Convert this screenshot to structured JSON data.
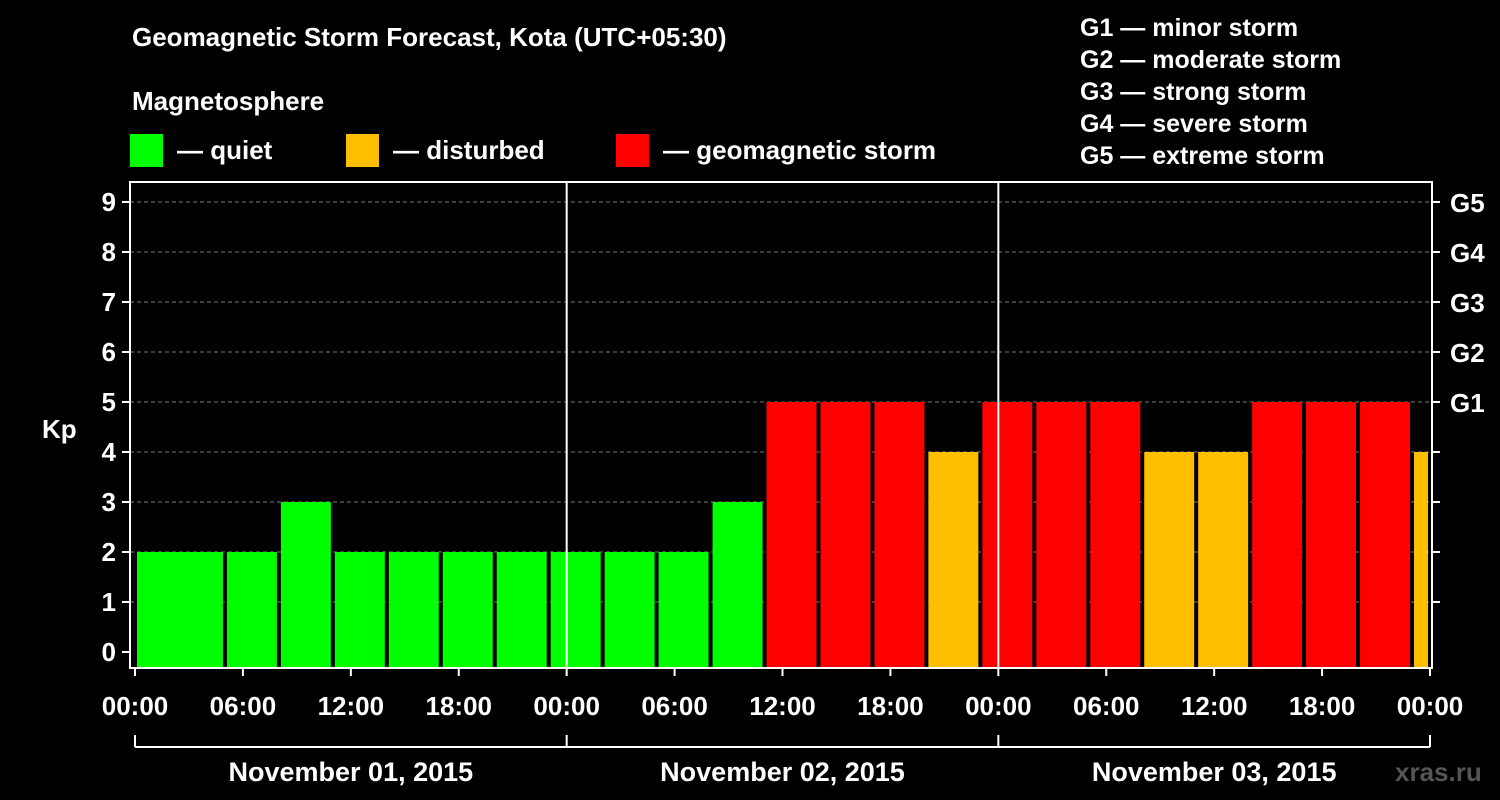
{
  "title": "Geomagnetic Storm Forecast, Kota (UTC+05:30)",
  "magnetosphere_label": "Magnetosphere",
  "legend": [
    {
      "label": "— quiet",
      "color": "#00ff00"
    },
    {
      "label": "— disturbed",
      "color": "#ffbf00"
    },
    {
      "label": "— geomagnetic storm",
      "color": "#ff0000"
    }
  ],
  "g_scale_legend": [
    "G1 — minor storm",
    "G2 — moderate storm",
    "G3 — strong storm",
    "G4 — severe storm",
    "G5 — extreme storm"
  ],
  "watermark": "xras.ru",
  "colors": {
    "quiet": "#00ff00",
    "disturbed": "#ffbf00",
    "storm": "#ff0000",
    "background": "#000000",
    "axis": "#ffffff"
  },
  "chart_data": {
    "type": "bar",
    "ylabel": "Kp",
    "ylim": [
      0,
      9
    ],
    "yticks": [
      "0",
      "1",
      "2",
      "3",
      "4",
      "5",
      "6",
      "7",
      "8",
      "9"
    ],
    "right_ticks": [
      {
        "kp": 5,
        "label": "G1"
      },
      {
        "kp": 6,
        "label": "G2"
      },
      {
        "kp": 7,
        "label": "G3"
      },
      {
        "kp": 8,
        "label": "G4"
      },
      {
        "kp": 9,
        "label": "G5"
      }
    ],
    "grid": true,
    "x_tick_labels": [
      "00:00",
      "06:00",
      "12:00",
      "18:00",
      "00:00",
      "06:00",
      "12:00",
      "18:00",
      "00:00",
      "06:00",
      "12:00",
      "18:00",
      "00:00"
    ],
    "days": [
      "November 01, 2015",
      "November 02, 2015",
      "November 03, 2015"
    ],
    "bars": [
      {
        "start": "00:00",
        "kp": 2,
        "level": "quiet"
      },
      {
        "start": "02:00",
        "kp": 2,
        "level": "quiet"
      },
      {
        "start": "05:00",
        "kp": 2,
        "level": "quiet"
      },
      {
        "start": "08:00",
        "kp": 3,
        "level": "quiet"
      },
      {
        "start": "11:00",
        "kp": 2,
        "level": "quiet"
      },
      {
        "start": "14:00",
        "kp": 2,
        "level": "quiet"
      },
      {
        "start": "17:00",
        "kp": 2,
        "level": "quiet"
      },
      {
        "start": "20:00",
        "kp": 2,
        "level": "quiet"
      },
      {
        "start": "23:00",
        "kp": 2,
        "level": "quiet"
      },
      {
        "start": "02:00",
        "kp": 2,
        "level": "quiet"
      },
      {
        "start": "05:00",
        "kp": 2,
        "level": "quiet"
      },
      {
        "start": "08:00",
        "kp": 3,
        "level": "quiet"
      },
      {
        "start": "11:00",
        "kp": 5,
        "level": "storm"
      },
      {
        "start": "14:00",
        "kp": 5,
        "level": "storm"
      },
      {
        "start": "17:00",
        "kp": 5,
        "level": "storm"
      },
      {
        "start": "20:00",
        "kp": 4,
        "level": "disturbed"
      },
      {
        "start": "23:00",
        "kp": 5,
        "level": "storm"
      },
      {
        "start": "02:00",
        "kp": 5,
        "level": "storm"
      },
      {
        "start": "05:00",
        "kp": 5,
        "level": "storm"
      },
      {
        "start": "08:00",
        "kp": 4,
        "level": "disturbed"
      },
      {
        "start": "11:00",
        "kp": 4,
        "level": "disturbed"
      },
      {
        "start": "14:00",
        "kp": 5,
        "level": "storm"
      },
      {
        "start": "17:00",
        "kp": 5,
        "level": "storm"
      },
      {
        "start": "20:00",
        "kp": 5,
        "level": "storm"
      },
      {
        "start": "23:00",
        "kp": 4,
        "level": "disturbed"
      }
    ]
  }
}
